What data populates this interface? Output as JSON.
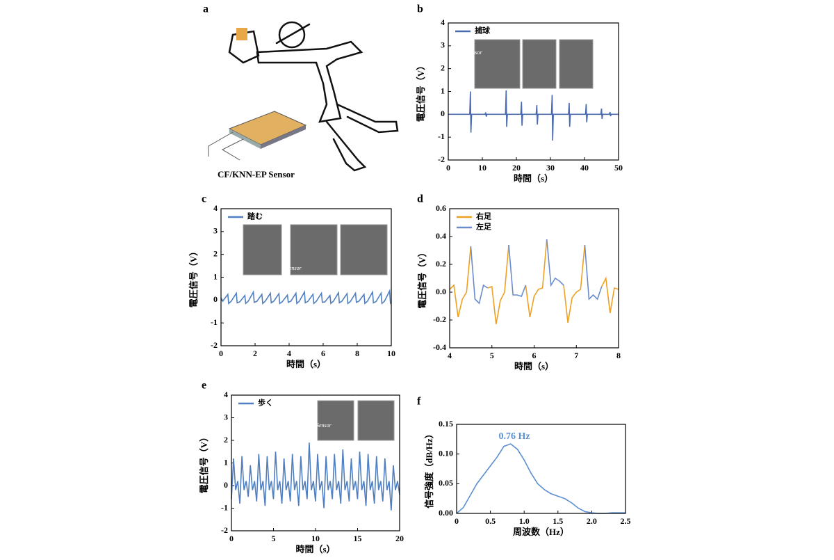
{
  "illustration": {
    "panel": "a",
    "caption": "CF/KNN-EP Sensor"
  },
  "chart_data": [
    {
      "panel": "b",
      "type": "line",
      "x_label": "時間（s）",
      "y_label": "電圧信号（V）",
      "legend": "upper left",
      "annotations": [
        "Sensor"
      ],
      "xlim": [
        0,
        50
      ],
      "ylim": [
        -2,
        4
      ],
      "xticks": [
        0,
        10,
        20,
        30,
        40,
        50
      ],
      "yticks": [
        -2,
        -1,
        0,
        1,
        2,
        3,
        4
      ],
      "x": [
        0,
        6.3,
        6.5,
        6.65,
        6.85,
        10.8,
        11,
        11.15,
        11.35,
        16.8,
        17,
        17.15,
        17.35,
        21.3,
        21.5,
        21.65,
        21.85,
        25.8,
        26,
        26.15,
        26.35,
        30.3,
        30.5,
        30.65,
        30.85,
        35.3,
        35.5,
        35.65,
        35.85,
        40.3,
        40.5,
        40.65,
        40.85,
        44.8,
        45,
        45.15,
        45.35,
        47.3,
        47.5,
        47.65,
        47.85,
        50
      ],
      "series": [
        {
          "name": "捕球",
          "color": "#4a6bb0",
          "values": [
            0,
            0,
            1.0,
            -0.8,
            0,
            0,
            0.08,
            -0.1,
            0,
            0,
            1.05,
            -0.55,
            0,
            0,
            0.55,
            -0.5,
            0,
            0,
            0.4,
            -0.45,
            0,
            0,
            0.85,
            -1.15,
            0,
            0,
            0.5,
            -0.55,
            0,
            0,
            0.45,
            -0.35,
            0,
            0,
            0.25,
            -0.2,
            0,
            0,
            0.1,
            -0.08,
            0,
            0
          ]
        }
      ]
    },
    {
      "panel": "c",
      "type": "line",
      "x_label": "時間（s）",
      "y_label": "電圧信号（V）",
      "legend": "upper left",
      "annotations": [
        "Sensor"
      ],
      "xlim": [
        0,
        10
      ],
      "ylim": [
        -2,
        4
      ],
      "xticks": [
        0,
        2,
        4,
        6,
        8,
        10
      ],
      "yticks": [
        -2,
        -1,
        0,
        1,
        2,
        3,
        4
      ],
      "x": [
        0,
        0.1,
        0.4,
        0.45,
        0.6,
        0.9,
        0.95,
        1.1,
        1.4,
        1.45,
        1.6,
        1.9,
        1.95,
        2.1,
        2.4,
        2.45,
        2.6,
        2.9,
        2.95,
        3.1,
        3.4,
        3.45,
        3.6,
        3.9,
        3.95,
        4.1,
        4.4,
        4.45,
        4.6,
        4.9,
        4.95,
        5.1,
        5.4,
        5.45,
        5.6,
        5.9,
        5.95,
        6.1,
        6.4,
        6.45,
        6.6,
        6.9,
        6.95,
        7.1,
        7.4,
        7.45,
        7.6,
        7.9,
        7.95,
        8.1,
        8.4,
        8.45,
        8.6,
        8.9,
        8.95,
        9.1,
        9.4,
        9.45,
        9.6,
        9.9,
        9.95,
        10
      ],
      "series": [
        {
          "name": "踏む",
          "color": "#4f7fc0",
          "values": [
            0.1,
            -0.05,
            0.25,
            -0.15,
            -0.05,
            0.3,
            -0.12,
            -0.08,
            0.2,
            -0.15,
            -0.05,
            0.35,
            -0.1,
            -0.06,
            0.25,
            -0.15,
            -0.05,
            0.3,
            -0.12,
            -0.05,
            0.28,
            -0.15,
            -0.07,
            0.22,
            -0.1,
            -0.05,
            0.3,
            -0.15,
            -0.05,
            0.35,
            -0.12,
            -0.06,
            0.25,
            -0.15,
            -0.05,
            0.3,
            -0.1,
            -0.08,
            0.2,
            -0.15,
            -0.05,
            0.32,
            -0.12,
            -0.05,
            0.28,
            -0.15,
            -0.06,
            0.3,
            -0.1,
            -0.05,
            0.25,
            -0.15,
            -0.05,
            0.35,
            -0.12,
            -0.07,
            0.3,
            -0.15,
            -0.05,
            0.4,
            -0.12,
            -0.05
          ]
        }
      ]
    },
    {
      "panel": "d",
      "type": "line",
      "x_label": "時間（s）",
      "y_label": "電圧信号（V）",
      "legend": "upper left",
      "xlim": [
        4,
        8
      ],
      "ylim": [
        -0.4,
        0.6
      ],
      "xticks": [
        4,
        5,
        6,
        7,
        8
      ],
      "yticks": [
        -0.4,
        -0.2,
        {
          "value": 0,
          "label": "0.0"
        },
        0.2,
        0.4,
        0.6
      ],
      "x": [
        4.0,
        4.1,
        4.2,
        4.3,
        4.4,
        4.5,
        4.6,
        4.7,
        4.8,
        4.9,
        5.0,
        5.1,
        5.2,
        5.3,
        5.4,
        5.5,
        5.6,
        5.7,
        5.8,
        5.9,
        6.0,
        6.1,
        6.2,
        6.3,
        6.4,
        6.5,
        6.6,
        6.7,
        6.8,
        6.9,
        7.0,
        7.1,
        7.2,
        7.3,
        7.4,
        7.5,
        7.6,
        7.7,
        7.8,
        7.9,
        8.0
      ],
      "series": [
        {
          "name": "右足",
          "color": "#f0a020",
          "values": [
            0.02,
            0.05,
            -0.18,
            -0.05,
            0.0,
            0.33,
            null,
            null,
            null,
            0.03,
            0.04,
            -0.23,
            -0.06,
            0.0,
            0.34,
            null,
            null,
            null,
            0.05,
            -0.18,
            -0.03,
            0.02,
            0.03,
            0.38,
            null,
            null,
            null,
            0.05,
            -0.22,
            -0.04,
            0.0,
            0.02,
            0.34,
            null,
            null,
            null,
            0.04,
            0.1,
            -0.15,
            0.03,
            0.02
          ]
        },
        {
          "name": "左足",
          "color": "#6a8ccc",
          "values": [
            null,
            null,
            null,
            null,
            null,
            0.33,
            -0.05,
            -0.08,
            0.05,
            0.03,
            null,
            null,
            null,
            null,
            0.34,
            -0.02,
            -0.02,
            -0.03,
            0.05,
            null,
            null,
            null,
            null,
            0.38,
            0.05,
            0.1,
            0.08,
            0.05,
            null,
            null,
            null,
            null,
            0.34,
            -0.05,
            -0.02,
            -0.05,
            0.04,
            null,
            null,
            null,
            null
          ]
        }
      ]
    },
    {
      "panel": "e",
      "type": "line",
      "x_label": "時間（s）",
      "y_label": "電圧信号（V）",
      "legend": "upper left",
      "annotations": [
        "Sensor"
      ],
      "xlim": [
        0,
        20
      ],
      "ylim": [
        -2,
        4
      ],
      "xticks": [
        0,
        5,
        10,
        15,
        20
      ],
      "yticks": [
        -2,
        -1,
        0,
        1,
        2,
        3,
        4
      ],
      "x": [
        0,
        0.25,
        0.5,
        0.75,
        1,
        1.25,
        1.5,
        1.75,
        2,
        2.25,
        2.5,
        2.75,
        3,
        3.25,
        3.5,
        3.75,
        4,
        4.25,
        4.5,
        4.75,
        5,
        5.25,
        5.5,
        5.75,
        6,
        6.25,
        6.5,
        6.75,
        7,
        7.25,
        7.5,
        7.75,
        8,
        8.25,
        8.5,
        8.75,
        9,
        9.25,
        9.5,
        9.75,
        10,
        10.25,
        10.5,
        10.75,
        11,
        11.25,
        11.5,
        11.75,
        12,
        12.25,
        12.5,
        12.75,
        13,
        13.25,
        13.5,
        13.75,
        14,
        14.25,
        14.5,
        14.75,
        15,
        15.25,
        15.5,
        15.75,
        16,
        16.25,
        16.5,
        16.75,
        17,
        17.25,
        17.5,
        17.75,
        18,
        18.25,
        18.5,
        18.75,
        19,
        19.25,
        19.5,
        19.75,
        20
      ],
      "series": [
        {
          "name": "歩く",
          "color": "#4f7fc0",
          "values": [
            -0.6,
            1.2,
            -0.2,
            0.2,
            -0.8,
            1.3,
            -0.2,
            0.2,
            -0.5,
            0.9,
            -0.2,
            0.2,
            -0.7,
            1.4,
            -0.2,
            0.2,
            -0.9,
            1.3,
            -0.2,
            0.2,
            -0.6,
            1.5,
            -0.2,
            0.2,
            -0.8,
            1.2,
            -0.2,
            0.2,
            -0.7,
            1.4,
            -0.2,
            0.2,
            -0.9,
            1.3,
            -0.2,
            0.2,
            -0.6,
            1.9,
            -0.2,
            0.2,
            -0.7,
            1.4,
            -0.2,
            0.2,
            -1.0,
            1.3,
            -0.2,
            0.2,
            -0.6,
            1.4,
            -0.2,
            0.2,
            -0.8,
            1.6,
            -0.2,
            0.2,
            -0.7,
            1.2,
            -0.2,
            0.2,
            -0.6,
            1.5,
            -0.2,
            0.2,
            -0.9,
            1.4,
            -0.2,
            0.2,
            -0.8,
            1.3,
            -0.2,
            0.2,
            -0.7,
            1.2,
            -0.2,
            0.2,
            -1.1,
            0.9,
            -0.2,
            0.2,
            -0.4
          ]
        }
      ]
    },
    {
      "panel": "f",
      "type": "line",
      "x_label": "周波数（Hz）",
      "y_label": "信号強度（dB/Hz）",
      "annotations": [
        "0.76 Hz"
      ],
      "xlim": [
        0,
        2.5
      ],
      "ylim": [
        0,
        0.15
      ],
      "xticks": [
        0,
        0.5,
        {
          "value": 1,
          "label": "1.0"
        },
        1.5,
        {
          "value": 2,
          "label": "2.0"
        },
        2.5
      ],
      "yticks": [
        {
          "value": 0,
          "label": "0.00"
        },
        0.05,
        {
          "value": 0.1,
          "label": "0.10"
        },
        0.15
      ],
      "x": [
        0,
        0.1,
        0.2,
        0.3,
        0.4,
        0.5,
        0.6,
        0.7,
        0.8,
        0.9,
        1.0,
        1.1,
        1.2,
        1.3,
        1.4,
        1.5,
        1.6,
        1.7,
        1.8,
        1.9,
        2.0,
        2.1,
        2.2,
        2.3,
        2.4,
        2.5
      ],
      "series": [
        {
          "color": "#5a8fd0",
          "values": [
            0,
            0.01,
            0.03,
            0.05,
            0.065,
            0.08,
            0.095,
            0.113,
            0.117,
            0.108,
            0.09,
            0.068,
            0.05,
            0.04,
            0.033,
            0.029,
            0.025,
            0.018,
            0.009,
            0.003,
            0.001,
            0,
            0,
            0.001,
            0.001,
            0.001
          ]
        }
      ]
    }
  ]
}
